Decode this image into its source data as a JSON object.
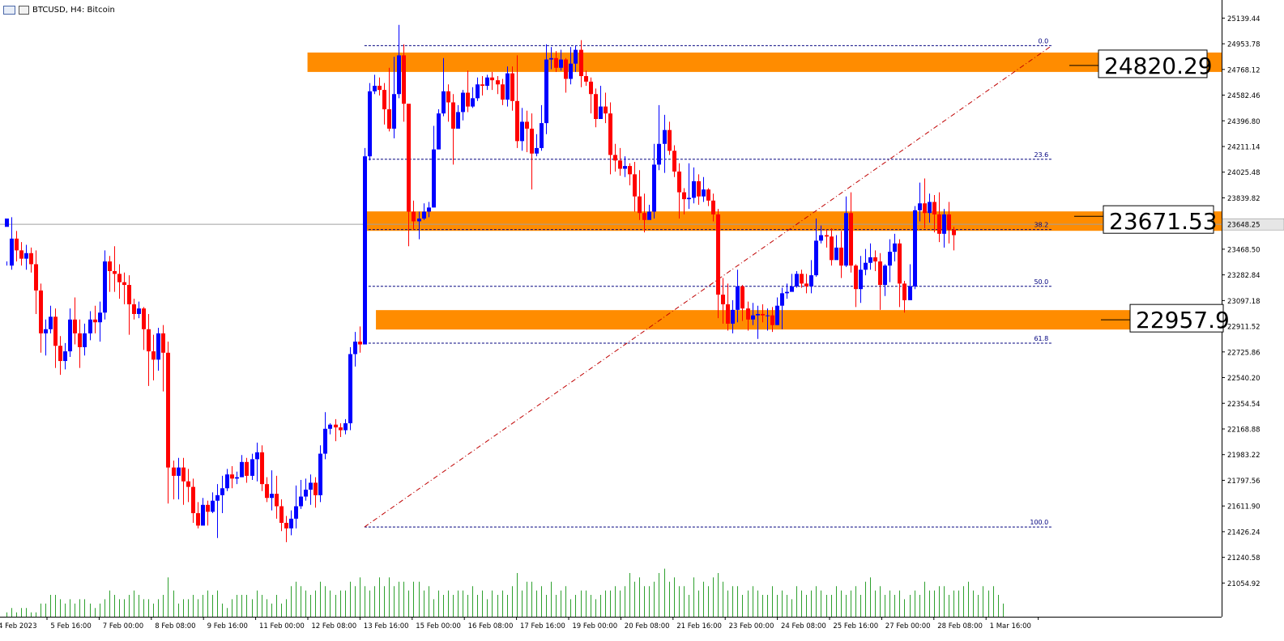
{
  "header": {
    "symbol_label": "BTCUSD, H4:  Bitcoin",
    "icons": [
      "chart-window-icon",
      "chart-properties-icon"
    ]
  },
  "colors": {
    "bull": "#0000ff",
    "bear": "#ff0000",
    "zone": "#ff8c00",
    "fib_line": "#00007f",
    "trend_line": "#c00000",
    "volume": "#2ea02e",
    "background": "#ffffff"
  },
  "chart_data": {
    "type": "candlestick",
    "symbol": "BTCUSD",
    "timeframe": "H4",
    "ylim": [
      20940,
      25200
    ],
    "y_ticks": [
      "25139.44",
      "24953.78",
      "24768.12",
      "24582.46",
      "24396.80",
      "24211.14",
      "24025.48",
      "23839.82",
      "23654.16",
      "23468.50",
      "23282.84",
      "23097.18",
      "22911.52",
      "22725.86",
      "22540.20",
      "22354.54",
      "22168.88",
      "21983.22",
      "21797.56",
      "21611.90",
      "21426.24",
      "21240.58",
      "21054.92"
    ],
    "x_ticks": [
      "4 Feb 2023",
      "5 Feb 16:00",
      "7 Feb 00:00",
      "8 Feb 08:00",
      "9 Feb 16:00",
      "11 Feb 00:00",
      "12 Feb 08:00",
      "13 Feb 16:00",
      "15 Feb 00:00",
      "16 Feb 08:00",
      "17 Feb 16:00",
      "19 Feb 00:00",
      "20 Feb 08:00",
      "21 Feb 16:00",
      "23 Feb 00:00",
      "24 Feb 08:00",
      "25 Feb 16:00",
      "27 Feb 00:00",
      "28 Feb 08:00",
      "1 Mar 16:00"
    ],
    "current_price": "23648.25",
    "current_price_value": 23648.25,
    "zones": [
      {
        "label": "24820.29",
        "value": 24820.29,
        "start_bar": 68
      },
      {
        "label": "23671.53",
        "value": 23671.53,
        "start_bar": 74
      },
      {
        "label": "22957.9",
        "value": 22957.9,
        "start_bar": 76
      }
    ],
    "fibonacci": {
      "start_bar": 73,
      "end_bar": 213,
      "low": 21460,
      "high": 24940,
      "levels": [
        {
          "label": "0.0",
          "ratio": 0.0
        },
        {
          "label": "23.6",
          "ratio": 0.236
        },
        {
          "label": "38.2",
          "ratio": 0.382
        },
        {
          "label": "50.0",
          "ratio": 0.5
        },
        {
          "label": "61.8",
          "ratio": 0.618
        },
        {
          "label": "100.0",
          "ratio": 1.0
        }
      ]
    },
    "candles": [
      [
        23630,
        23690,
        23380,
        23350
      ],
      [
        23350,
        23545,
        23700,
        23320
      ],
      [
        23545,
        23460,
        23600,
        23380
      ],
      [
        23460,
        23400,
        23520,
        23350
      ],
      [
        23400,
        23440,
        23500,
        23320
      ],
      [
        23440,
        23360,
        23480,
        23300
      ],
      [
        23360,
        23170,
        23460,
        23000
      ],
      [
        23170,
        22860,
        23220,
        22720
      ],
      [
        22860,
        22890,
        22960,
        22700
      ],
      [
        22890,
        22980,
        23060,
        22860
      ],
      [
        22980,
        22770,
        23040,
        22610
      ],
      [
        22770,
        22660,
        22840,
        22560
      ],
      [
        22660,
        22730,
        22790,
        22600
      ],
      [
        22730,
        22960,
        23040,
        22690
      ],
      [
        22960,
        22860,
        23120,
        22780
      ],
      [
        22860,
        22760,
        22960,
        22610
      ],
      [
        22760,
        22860,
        22930,
        22700
      ],
      [
        22860,
        22960,
        23020,
        22810
      ],
      [
        22960,
        22940,
        23060,
        22860
      ],
      [
        22940,
        23010,
        23090,
        22800
      ],
      [
        23010,
        23380,
        23460,
        22960
      ],
      [
        23380,
        23310,
        23420,
        23160
      ],
      [
        23310,
        23290,
        23490,
        23160
      ],
      [
        23290,
        23230,
        23360,
        23110
      ],
      [
        23230,
        23210,
        23300,
        23070
      ],
      [
        23210,
        23070,
        23280,
        22850
      ],
      [
        23070,
        23000,
        23110,
        22960
      ],
      [
        23000,
        23040,
        23090,
        22970
      ],
      [
        23040,
        22890,
        23050,
        22740
      ],
      [
        22890,
        22730,
        23000,
        22480
      ],
      [
        22730,
        22670,
        22850,
        22520
      ],
      [
        22670,
        22860,
        22900,
        22590
      ],
      [
        22860,
        22720,
        22920,
        22440
      ],
      [
        22720,
        21890,
        22800,
        21630
      ],
      [
        21890,
        21830,
        21940,
        21660
      ],
      [
        21830,
        21890,
        21960,
        21660
      ],
      [
        21890,
        21790,
        21960,
        21620
      ],
      [
        21790,
        21750,
        21880,
        21640
      ],
      [
        21750,
        21560,
        21810,
        21490
      ],
      [
        21560,
        21470,
        21640,
        21450
      ],
      [
        21470,
        21620,
        21670,
        21560
      ],
      [
        21620,
        21570,
        21650,
        21470
      ],
      [
        21570,
        21650,
        21710,
        21560
      ],
      [
        21650,
        21690,
        21770,
        21380
      ],
      [
        21690,
        21740,
        21830,
        21560
      ],
      [
        21740,
        21840,
        21880,
        21720
      ],
      [
        21840,
        21810,
        21900,
        21740
      ],
      [
        21810,
        21820,
        21860,
        21770
      ],
      [
        21820,
        21930,
        21980,
        21820
      ],
      [
        21930,
        21830,
        21960,
        21780
      ],
      [
        21830,
        21950,
        21990,
        21800
      ],
      [
        21950,
        22000,
        22070,
        21790
      ],
      [
        22000,
        21770,
        22050,
        21720
      ],
      [
        21770,
        21670,
        21820,
        21640
      ],
      [
        21670,
        21700,
        21870,
        21580
      ],
      [
        21700,
        21610,
        21830,
        21520
      ],
      [
        21610,
        21490,
        21660,
        21430
      ],
      [
        21490,
        21450,
        21540,
        21350
      ],
      [
        21450,
        21520,
        21580,
        21400
      ],
      [
        21520,
        21610,
        21760,
        21450
      ],
      [
        21610,
        21680,
        21800,
        21590
      ],
      [
        21680,
        21730,
        21810,
        21650
      ],
      [
        21730,
        21780,
        21840,
        21620
      ],
      [
        21780,
        21690,
        21820,
        21600
      ],
      [
        21690,
        21990,
        22050,
        21640
      ],
      [
        21990,
        22170,
        22290,
        21950
      ],
      [
        22170,
        22200,
        22210,
        22130
      ],
      [
        22200,
        22180,
        22240,
        22080
      ],
      [
        22180,
        22160,
        22210,
        22110
      ],
      [
        22160,
        22210,
        22240,
        22130
      ],
      [
        22210,
        22710,
        22760,
        22160
      ],
      [
        22710,
        22800,
        22870,
        22620
      ],
      [
        22800,
        22780,
        22910,
        22720
      ],
      [
        22780,
        24140,
        24200,
        22780
      ],
      [
        24140,
        24610,
        24670,
        24110
      ],
      [
        24610,
        24650,
        24730,
        24590
      ],
      [
        24650,
        24620,
        24710,
        24580
      ],
      [
        24620,
        24480,
        24670,
        24370
      ],
      [
        24480,
        24340,
        24780,
        24320
      ],
      [
        24340,
        24590,
        24860,
        24270
      ],
      [
        24590,
        24870,
        25090,
        24560
      ],
      [
        24870,
        24520,
        24950,
        24390
      ],
      [
        24520,
        23740,
        24470,
        23490
      ],
      [
        23740,
        23670,
        23820,
        23610
      ],
      [
        23670,
        23690,
        23740,
        23540
      ],
      [
        23690,
        23740,
        23800,
        23680
      ],
      [
        23740,
        23770,
        23810,
        23700
      ],
      [
        23770,
        24190,
        24360,
        23770
      ],
      [
        24190,
        24450,
        24480,
        24190
      ],
      [
        24450,
        24610,
        24850,
        24430
      ],
      [
        24610,
        24530,
        24660,
        24390
      ],
      [
        24530,
        24340,
        24590,
        24080
      ],
      [
        24340,
        24460,
        24510,
        24400
      ],
      [
        24460,
        24600,
        24620,
        24400
      ],
      [
        24600,
        24500,
        24760,
        24460
      ],
      [
        24500,
        24560,
        24640,
        24490
      ],
      [
        24560,
        24660,
        24710,
        24540
      ],
      [
        24660,
        24650,
        24720,
        24580
      ],
      [
        24650,
        24710,
        24730,
        24620
      ],
      [
        24710,
        24690,
        24750,
        24620
      ],
      [
        24690,
        24660,
        24720,
        24590
      ],
      [
        24660,
        24550,
        24700,
        24510
      ],
      [
        24550,
        24740,
        24790,
        24500
      ],
      [
        24740,
        24540,
        24790,
        24470
      ],
      [
        24540,
        24250,
        24870,
        24200
      ],
      [
        24250,
        24390,
        24490,
        24180
      ],
      [
        24390,
        24340,
        24470,
        24170
      ],
      [
        24340,
        24160,
        24450,
        23900
      ],
      [
        24160,
        24200,
        24300,
        24140
      ],
      [
        24200,
        24380,
        24510,
        24180
      ],
      [
        24380,
        24840,
        24950,
        24300
      ],
      [
        24840,
        24850,
        24930,
        24770
      ],
      [
        24850,
        24780,
        24900,
        24750
      ],
      [
        24780,
        24840,
        24910,
        24760
      ],
      [
        24840,
        24700,
        24850,
        24600
      ],
      [
        24700,
        24810,
        24930,
        24660
      ],
      [
        24810,
        24910,
        24940,
        24750
      ],
      [
        24910,
        24720,
        24980,
        24640
      ],
      [
        24720,
        24680,
        24760,
        24650
      ],
      [
        24680,
        24590,
        24710,
        24450
      ],
      [
        24590,
        24410,
        24630,
        24350
      ],
      [
        24410,
        24500,
        24650,
        24420
      ],
      [
        24500,
        24450,
        24600,
        24380
      ],
      [
        24450,
        24150,
        24530,
        24010
      ],
      [
        24150,
        24110,
        24230,
        24030
      ],
      [
        24110,
        24050,
        24200,
        24000
      ],
      [
        24050,
        24070,
        24140,
        23990
      ],
      [
        24070,
        24010,
        24090,
        23930
      ],
      [
        24010,
        23850,
        24100,
        23740
      ],
      [
        23850,
        23730,
        24040,
        23680
      ],
      [
        23730,
        23680,
        23870,
        23590
      ],
      [
        23680,
        23740,
        23790,
        23690
      ],
      [
        23740,
        24080,
        24230,
        23690
      ],
      [
        24080,
        24230,
        24510,
        24040
      ],
      [
        24230,
        24330,
        24440,
        24020
      ],
      [
        24330,
        24180,
        24390,
        24150
      ],
      [
        24180,
        24030,
        24220,
        23990
      ],
      [
        24030,
        23880,
        24090,
        23690
      ],
      [
        23880,
        23830,
        23910,
        23720
      ],
      [
        23830,
        23840,
        24090,
        23760
      ],
      [
        23840,
        23960,
        24060,
        23800
      ],
      [
        23960,
        23850,
        24010,
        23790
      ],
      [
        23850,
        23900,
        23990,
        23810
      ],
      [
        23900,
        23820,
        23910,
        23780
      ],
      [
        23820,
        23720,
        23870,
        23670
      ],
      [
        23720,
        23140,
        23760,
        22970
      ],
      [
        23140,
        23070,
        23260,
        22930
      ],
      [
        23070,
        22930,
        23220,
        22880
      ],
      [
        22930,
        23030,
        23100,
        22860
      ],
      [
        23030,
        23200,
        23320,
        22940
      ],
      [
        23200,
        23040,
        23210,
        22950
      ],
      [
        23040,
        22960,
        23090,
        22880
      ],
      [
        22960,
        22990,
        23080,
        22920
      ],
      [
        22990,
        23000,
        23060,
        22820
      ],
      [
        23000,
        22990,
        23070,
        22940
      ],
      [
        22990,
        22990,
        23040,
        22880
      ],
      [
        22990,
        22920,
        23050,
        22870
      ],
      [
        22920,
        23060,
        23120,
        22920
      ],
      [
        23060,
        23150,
        23190,
        22890
      ],
      [
        23150,
        23160,
        23220,
        23110
      ],
      [
        23160,
        23200,
        23290,
        23180
      ],
      [
        23200,
        23290,
        23310,
        23190
      ],
      [
        23290,
        23220,
        23320,
        23190
      ],
      [
        23220,
        23200,
        23290,
        23150
      ],
      [
        23200,
        23280,
        23390,
        23150
      ],
      [
        23280,
        23530,
        23690,
        23270
      ],
      [
        23530,
        23570,
        23640,
        23510
      ],
      [
        23570,
        23560,
        23610,
        23480
      ],
      [
        23560,
        23390,
        23620,
        23350
      ],
      [
        23390,
        23480,
        23570,
        23430
      ],
      [
        23480,
        23350,
        23600,
        23260
      ],
      [
        23350,
        23730,
        23850,
        23340
      ],
      [
        23730,
        23350,
        23880,
        23300
      ],
      [
        23350,
        23180,
        23360,
        23050
      ],
      [
        23180,
        23320,
        23420,
        23080
      ],
      [
        23320,
        23370,
        23470,
        23280
      ],
      [
        23370,
        23410,
        23510,
        23320
      ],
      [
        23410,
        23380,
        23460,
        23310
      ],
      [
        23380,
        23210,
        23440,
        23030
      ],
      [
        23210,
        23350,
        23360,
        23130
      ],
      [
        23350,
        23450,
        23540,
        23230
      ],
      [
        23450,
        23510,
        23580,
        23380
      ],
      [
        23510,
        23220,
        23540,
        23050
      ],
      [
        23220,
        23100,
        23240,
        23010
      ],
      [
        23100,
        23200,
        23360,
        23100
      ],
      [
        23200,
        23750,
        23780,
        23180
      ],
      [
        23750,
        23800,
        23950,
        23670
      ],
      [
        23800,
        23730,
        23980,
        23620
      ],
      [
        23730,
        23810,
        23870,
        23660
      ],
      [
        23810,
        23720,
        23860,
        23590
      ],
      [
        23720,
        23580,
        23880,
        23520
      ],
      [
        23580,
        23720,
        23760,
        23480
      ],
      [
        23720,
        23610,
        23810,
        23510
      ],
      [
        23610,
        23570,
        23630,
        23460
      ]
    ],
    "volumes": [
      1,
      2,
      1,
      2,
      2,
      1,
      1,
      3,
      3,
      5,
      5,
      4,
      3,
      4,
      3,
      4,
      4,
      3,
      2,
      3,
      4,
      6,
      5,
      4,
      4,
      5,
      6,
      5,
      4,
      4,
      3,
      4,
      5,
      9,
      6,
      3,
      4,
      4,
      5,
      4,
      5,
      6,
      5,
      6,
      3,
      2,
      4,
      5,
      5,
      5,
      4,
      6,
      5,
      4,
      3,
      5,
      3,
      4,
      7,
      8,
      7,
      6,
      5,
      6,
      8,
      7,
      6,
      5,
      6,
      6,
      8,
      7,
      9,
      7,
      6,
      7,
      9,
      7,
      9,
      7,
      8,
      8,
      6,
      8,
      8,
      6,
      7,
      4,
      6,
      5,
      6,
      5,
      6,
      6,
      5,
      7,
      5,
      6,
      4,
      6,
      5,
      6,
      5,
      7,
      10,
      6,
      8,
      8,
      6,
      7,
      5,
      8,
      5,
      6,
      7,
      4,
      5,
      6,
      6,
      5,
      4,
      5,
      6,
      6,
      7,
      6,
      7,
      10,
      8,
      9,
      7,
      7,
      8,
      10,
      11,
      8,
      9,
      7,
      7,
      5,
      9,
      6,
      8,
      7,
      9,
      10,
      8,
      6,
      7,
      7,
      5,
      6,
      7,
      6,
      5,
      5,
      7,
      5,
      6,
      5,
      4,
      7,
      6,
      5,
      6,
      7,
      6,
      5,
      5,
      7,
      6,
      5,
      6,
      7,
      5,
      8,
      9,
      6,
      7,
      5,
      6,
      5,
      6,
      4,
      5,
      6,
      5,
      8,
      6,
      6,
      7,
      7,
      5,
      6,
      6,
      7,
      8,
      6,
      5,
      7,
      6,
      7,
      5,
      3
    ]
  }
}
